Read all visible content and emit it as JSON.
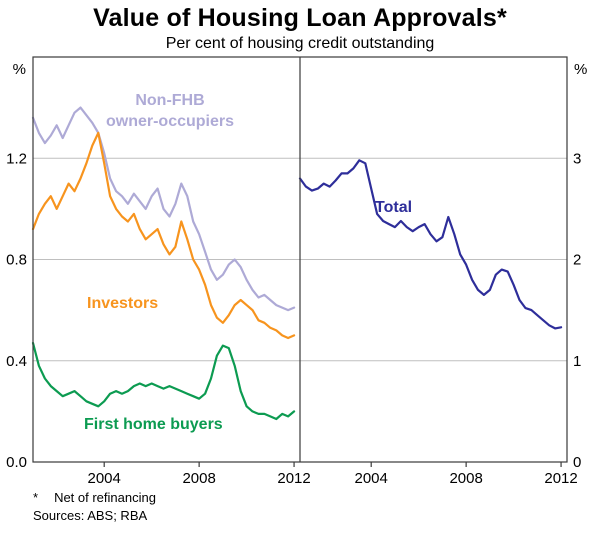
{
  "chart_data": {
    "type": "line",
    "title": "Value of Housing Loan Approvals*",
    "subtitle": "Per cent of housing credit outstanding",
    "footnote_star": "*",
    "footnote_text": "Net of refinancing",
    "sources": "Sources: ABS; RBA",
    "legend_position": "inline-labels",
    "grid": true,
    "colors": {
      "non_fhb": "#aeaad6",
      "investors": "#f7941e",
      "first_home_buyers": "#0c9b51",
      "total": "#2e2e9a",
      "grid_line": "#bfbfbf",
      "frame": "#3a3a3a",
      "text": "#000000"
    },
    "series_labels": {
      "nonfhb_line1": "Non-FHB",
      "nonfhb_line2": "owner-occupiers",
      "investors": "Investors",
      "fhb": "First home buyers",
      "total": "Total"
    },
    "panels": [
      {
        "id": "left",
        "xlim": [
          2001,
          2012.25
        ],
        "ylim": [
          0,
          1.6
        ],
        "y_unit": "%",
        "x_ticks": [
          {
            "value": 2004,
            "label": "2004"
          },
          {
            "value": 2008,
            "label": "2008"
          },
          {
            "value": 2012,
            "label": "2012"
          }
        ],
        "y_ticks": [
          {
            "value": 0.0,
            "label": "0.0"
          },
          {
            "value": 0.4,
            "label": "0.4"
          },
          {
            "value": 0.8,
            "label": "0.8"
          },
          {
            "value": 1.2,
            "label": "1.2"
          }
        ],
        "series": [
          {
            "name": "Non-FHB owner-occupiers",
            "color_key": "non_fhb",
            "x_start": 2001,
            "x_step": 0.25,
            "values": [
              1.36,
              1.3,
              1.26,
              1.29,
              1.33,
              1.28,
              1.33,
              1.38,
              1.4,
              1.37,
              1.34,
              1.3,
              1.22,
              1.12,
              1.07,
              1.05,
              1.02,
              1.06,
              1.03,
              1.0,
              1.05,
              1.08,
              1.0,
              0.97,
              1.02,
              1.1,
              1.05,
              0.95,
              0.9,
              0.83,
              0.76,
              0.72,
              0.74,
              0.78,
              0.8,
              0.77,
              0.72,
              0.68,
              0.65,
              0.66,
              0.64,
              0.62,
              0.61,
              0.6,
              0.61
            ]
          },
          {
            "name": "Investors",
            "color_key": "investors",
            "x_start": 2001,
            "x_step": 0.25,
            "values": [
              0.92,
              0.98,
              1.02,
              1.05,
              1.0,
              1.05,
              1.1,
              1.07,
              1.12,
              1.18,
              1.25,
              1.3,
              1.18,
              1.05,
              1.0,
              0.97,
              0.95,
              0.98,
              0.92,
              0.88,
              0.9,
              0.92,
              0.86,
              0.82,
              0.85,
              0.95,
              0.88,
              0.8,
              0.76,
              0.7,
              0.62,
              0.57,
              0.55,
              0.58,
              0.62,
              0.64,
              0.62,
              0.6,
              0.56,
              0.55,
              0.53,
              0.52,
              0.5,
              0.49,
              0.5
            ]
          },
          {
            "name": "First home buyers",
            "color_key": "first_home_buyers",
            "x_start": 2001,
            "x_step": 0.25,
            "values": [
              0.47,
              0.38,
              0.33,
              0.3,
              0.28,
              0.26,
              0.27,
              0.28,
              0.26,
              0.24,
              0.23,
              0.22,
              0.24,
              0.27,
              0.28,
              0.27,
              0.28,
              0.3,
              0.31,
              0.3,
              0.31,
              0.3,
              0.29,
              0.3,
              0.29,
              0.28,
              0.27,
              0.26,
              0.25,
              0.27,
              0.33,
              0.42,
              0.46,
              0.45,
              0.38,
              0.28,
              0.22,
              0.2,
              0.19,
              0.19,
              0.18,
              0.17,
              0.19,
              0.18,
              0.2
            ]
          }
        ]
      },
      {
        "id": "right",
        "xlim": [
          2001,
          2012.25
        ],
        "ylim": [
          0,
          4
        ],
        "y_unit": "%",
        "x_ticks": [
          {
            "value": 2004,
            "label": "2004"
          },
          {
            "value": 2008,
            "label": "2008"
          },
          {
            "value": 2012,
            "label": "2012"
          }
        ],
        "y_ticks": [
          {
            "value": 0,
            "label": "0"
          },
          {
            "value": 1,
            "label": "1"
          },
          {
            "value": 2,
            "label": "2"
          },
          {
            "value": 3,
            "label": "3"
          }
        ],
        "series": [
          {
            "name": "Total",
            "color_key": "total",
            "x_start": 2001,
            "x_step": 0.25,
            "values": [
              2.8,
              2.72,
              2.68,
              2.7,
              2.75,
              2.72,
              2.78,
              2.85,
              2.85,
              2.9,
              2.98,
              2.95,
              2.7,
              2.45,
              2.38,
              2.35,
              2.32,
              2.38,
              2.32,
              2.28,
              2.32,
              2.35,
              2.25,
              2.18,
              2.22,
              2.42,
              2.25,
              2.05,
              1.95,
              1.8,
              1.7,
              1.65,
              1.7,
              1.85,
              1.9,
              1.88,
              1.75,
              1.6,
              1.52,
              1.5,
              1.45,
              1.4,
              1.35,
              1.32,
              1.33
            ]
          }
        ]
      }
    ]
  }
}
